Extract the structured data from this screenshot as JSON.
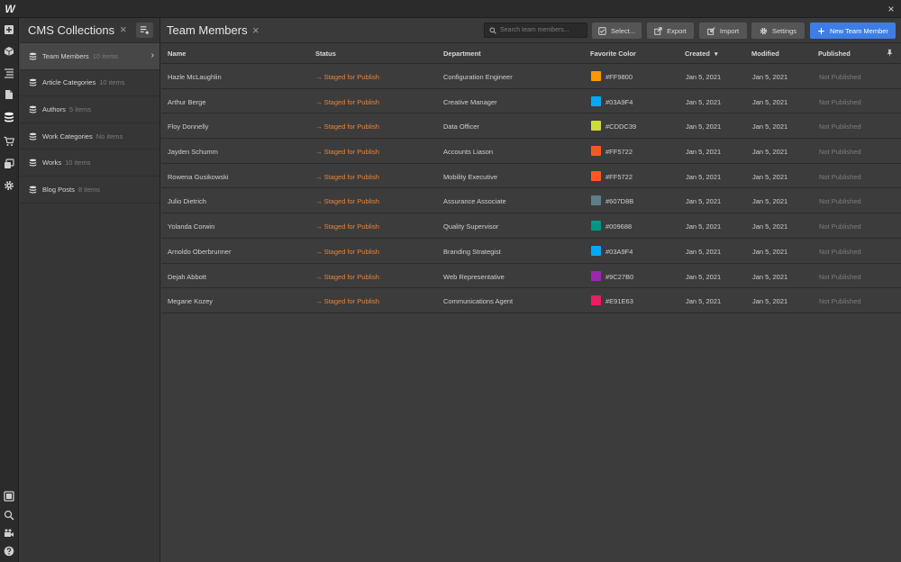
{
  "app": {
    "logo": "W",
    "close_glyph": "×"
  },
  "collections_panel": {
    "title": "CMS Collections",
    "close_glyph": "×",
    "items": [
      {
        "name": "Team Members",
        "count": "10 items"
      },
      {
        "name": "Article Categories",
        "count": "10 items"
      },
      {
        "name": "Authors",
        "count": "5 items"
      },
      {
        "name": "Work Categories",
        "count": "No items"
      },
      {
        "name": "Works",
        "count": "10 items"
      },
      {
        "name": "Blog Posts",
        "count": "8 items"
      }
    ]
  },
  "main": {
    "title": "Team Members",
    "close_glyph": "×",
    "search_placeholder": "Search team members...",
    "buttons": {
      "select": "Select...",
      "export": "Export",
      "import": "Import",
      "settings": "Settings",
      "new_item": "New Team Member"
    },
    "columns": [
      "Name",
      "Status",
      "Department",
      "Favorite Color",
      "Created",
      "Modified",
      "Published"
    ],
    "sort_indicator": "▾",
    "rows": [
      {
        "name": "Hazle McLaughlin",
        "status": "Staged for Publish",
        "department": "Configuration Engineer",
        "color": "#FF9800",
        "created": "Jan 5, 2021",
        "modified": "Jan 5, 2021",
        "published": "Not Published"
      },
      {
        "name": "Arthur Berge",
        "status": "Staged for Publish",
        "department": "Creative Manager",
        "color": "#03A9F4",
        "created": "Jan 5, 2021",
        "modified": "Jan 5, 2021",
        "published": "Not Published"
      },
      {
        "name": "Floy Donnelly",
        "status": "Staged for Publish",
        "department": "Data Officer",
        "color": "#CDDC39",
        "created": "Jan 5, 2021",
        "modified": "Jan 5, 2021",
        "published": "Not Published"
      },
      {
        "name": "Jayden Schumm",
        "status": "Staged for Publish",
        "department": "Accounts Liason",
        "color": "#FF5722",
        "created": "Jan 5, 2021",
        "modified": "Jan 5, 2021",
        "published": "Not Published"
      },
      {
        "name": "Rowena Gusikowski",
        "status": "Staged for Publish",
        "department": "Mobility Executive",
        "color": "#FF5722",
        "created": "Jan 5, 2021",
        "modified": "Jan 5, 2021",
        "published": "Not Published"
      },
      {
        "name": "Julio Dietrich",
        "status": "Staged for Publish",
        "department": "Assurance Associate",
        "color": "#607D8B",
        "created": "Jan 5, 2021",
        "modified": "Jan 5, 2021",
        "published": "Not Published"
      },
      {
        "name": "Yolanda Corwin",
        "status": "Staged for Publish",
        "department": "Quality Supervisor",
        "color": "#009688",
        "created": "Jan 5, 2021",
        "modified": "Jan 5, 2021",
        "published": "Not Published"
      },
      {
        "name": "Arnoldo Oberbrunner",
        "status": "Staged for Publish",
        "department": "Branding Strategist",
        "color": "#03A9F4",
        "created": "Jan 5, 2021",
        "modified": "Jan 5, 2021",
        "published": "Not Published"
      },
      {
        "name": "Dejah Abbott",
        "status": "Staged for Publish",
        "department": "Web Representative",
        "color": "#9C27B0",
        "created": "Jan 5, 2021",
        "modified": "Jan 5, 2021",
        "published": "Not Published"
      },
      {
        "name": "Megane Kozey",
        "status": "Staged for Publish",
        "department": "Communications Agent",
        "color": "#E91E63",
        "created": "Jan 5, 2021",
        "modified": "Jan 5, 2021",
        "published": "Not Published"
      }
    ]
  },
  "colors": {
    "accent": "#3d7ee6",
    "status_staged": "#e8843a",
    "panel_bg": "#363636",
    "rail_bg": "#2b2b2b"
  },
  "rail_icons": [
    "add-icon",
    "box-icon",
    "navigator-icon",
    "pages-icon",
    "cms-icon",
    "ecommerce-icon",
    "assets-icon",
    "settings-icon",
    "preview-icon",
    "search-icon",
    "video-icon",
    "help-icon"
  ]
}
